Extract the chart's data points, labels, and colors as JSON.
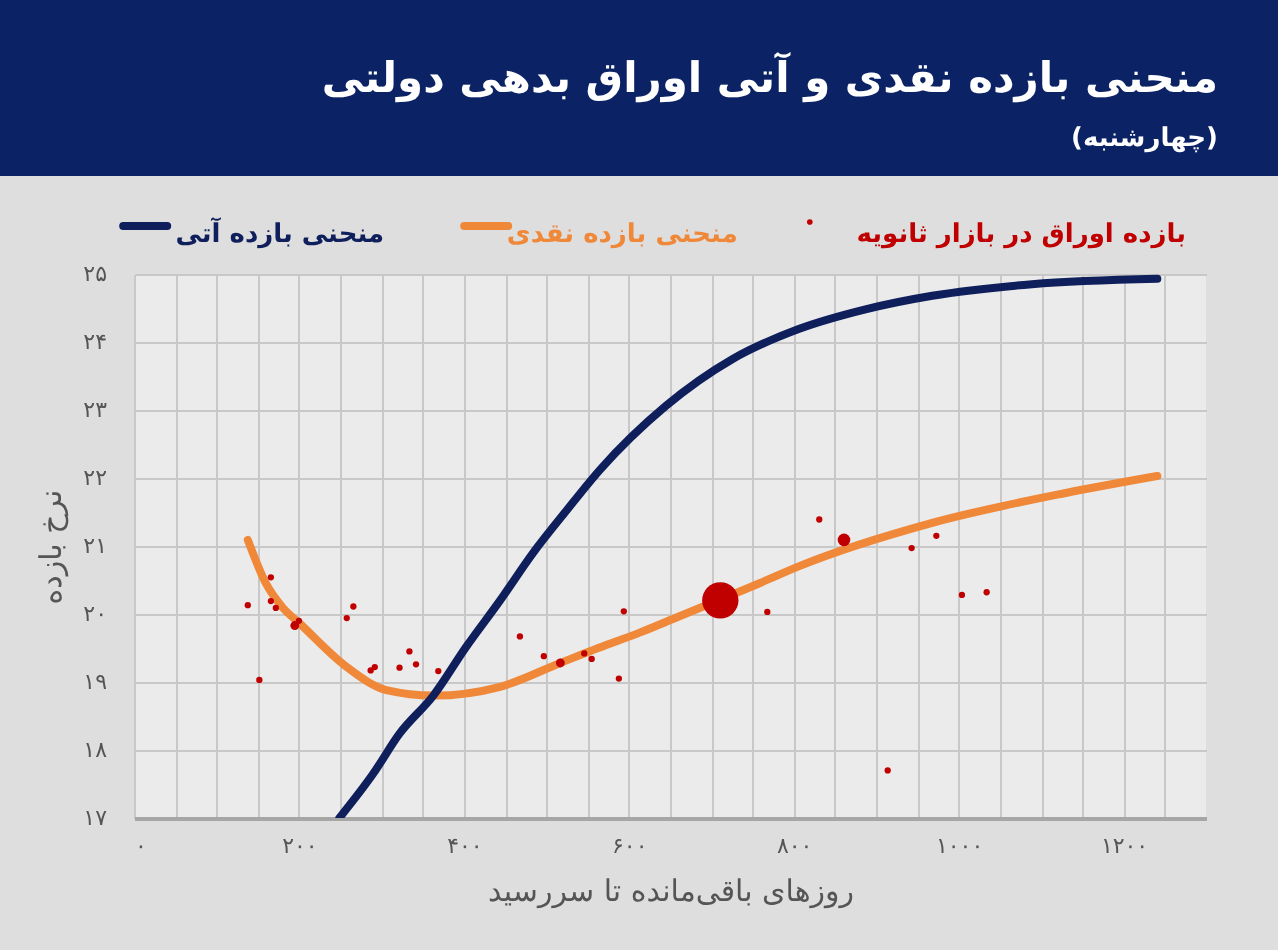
{
  "chart_data": {
    "type": "line",
    "title": "منحنی بازده نقدی و آتی اوراق بدهی دولتی",
    "subtitle": "(چهارشنبه)",
    "xlabel": "روزهای باقی‌مانده تا سررسید",
    "ylabel": "نرخ بازده",
    "xlim": [
      0,
      1300
    ],
    "ylim": [
      17,
      25
    ],
    "xticks": [
      {
        "value": 0,
        "label": "۰"
      },
      {
        "value": 50,
        "label": null
      },
      {
        "value": 100,
        "label": null
      },
      {
        "value": 150,
        "label": null
      },
      {
        "value": 200,
        "label": "۲۰۰"
      },
      {
        "value": 250,
        "label": null
      },
      {
        "value": 300,
        "label": null
      },
      {
        "value": 350,
        "label": null
      },
      {
        "value": 400,
        "label": "۴۰۰"
      },
      {
        "value": 450,
        "label": null
      },
      {
        "value": 500,
        "label": null
      },
      {
        "value": 550,
        "label": null
      },
      {
        "value": 600,
        "label": "۶۰۰"
      },
      {
        "value": 650,
        "label": null
      },
      {
        "value": 700,
        "label": null
      },
      {
        "value": 750,
        "label": null
      },
      {
        "value": 800,
        "label": "۸۰۰"
      },
      {
        "value": 850,
        "label": null
      },
      {
        "value": 900,
        "label": null
      },
      {
        "value": 950,
        "label": null
      },
      {
        "value": 1000,
        "label": "۱۰۰۰"
      },
      {
        "value": 1050,
        "label": null
      },
      {
        "value": 1100,
        "label": null
      },
      {
        "value": 1150,
        "label": null
      },
      {
        "value": 1200,
        "label": "۱۲۰۰"
      },
      {
        "value": 1250,
        "label": null
      }
    ],
    "yticks": [
      {
        "value": 17,
        "label": "۱۷"
      },
      {
        "value": 18,
        "label": "۱۸"
      },
      {
        "value": 19,
        "label": "۱۹"
      },
      {
        "value": 20,
        "label": "۲۰"
      },
      {
        "value": 21,
        "label": "۲۱"
      },
      {
        "value": 22,
        "label": "۲۲"
      },
      {
        "value": 23,
        "label": "۲۳"
      },
      {
        "value": 24,
        "label": "۲۴"
      },
      {
        "value": 25,
        "label": "۲۵"
      }
    ],
    "grid": true,
    "legend": "top",
    "line_style": "solid",
    "series": [
      {
        "name": "بازده اوراق در بازار ثانویه",
        "type": "bubble",
        "color": "#c00000",
        "x": [
          138,
          152,
          166,
          166,
          172,
          195,
          200,
          258,
          266,
          287,
          292,
          322,
          334,
          342,
          369,
          468,
          497,
          517,
          546,
          555,
          588,
          594,
          711,
          768,
          831,
          861,
          914,
          943,
          973,
          1004,
          1034
        ],
        "values": [
          20.13,
          19.03,
          20.54,
          20.19,
          20.09,
          19.83,
          19.9,
          19.94,
          20.11,
          19.17,
          19.22,
          19.21,
          19.45,
          19.26,
          19.16,
          19.67,
          19.38,
          19.28,
          19.42,
          19.34,
          19.05,
          20.04,
          20.2,
          20.03,
          21.39,
          21.09,
          17.7,
          20.97,
          21.15,
          20.28,
          20.32
        ],
        "sizes": [
          0.03,
          0.03,
          0.03,
          0.03,
          0.03,
          0.06,
          0.03,
          0.03,
          0.03,
          0.03,
          0.03,
          0.03,
          0.03,
          0.03,
          0.03,
          0.03,
          0.03,
          0.06,
          0.03,
          0.03,
          0.03,
          0.03,
          1,
          0.03,
          0.03,
          0.12,
          0.03,
          0.03,
          0.03,
          0.03,
          0.03
        ]
      },
      {
        "name": "منحنی بازده نقدی",
        "color": "#f0883a",
        "x": [
          138,
          160,
          180,
          201,
          258,
          306,
          363,
          444,
          517,
          563,
          614,
          660,
          760,
          806,
          968,
          1130,
          1241
        ],
        "values": [
          21.09,
          20.45,
          20.1,
          19.86,
          19.22,
          18.88,
          18.8,
          18.93,
          19.28,
          19.5,
          19.73,
          19.96,
          20.46,
          20.7,
          21.34,
          21.78,
          22.03
        ]
      },
      {
        "name": "منحنی بازده آتی",
        "color": "#0f1f5c",
        "x": [
          249,
          290,
          322,
          363,
          403,
          444,
          484,
          525,
          565,
          645,
          726,
          806,
          887,
          968,
          1089,
          1241
        ],
        "values": [
          17.0,
          17.65,
          18.24,
          18.8,
          19.52,
          20.2,
          20.9,
          21.53,
          22.12,
          23.06,
          23.75,
          24.19,
          24.48,
          24.68,
          24.85,
          24.93
        ]
      }
    ]
  }
}
